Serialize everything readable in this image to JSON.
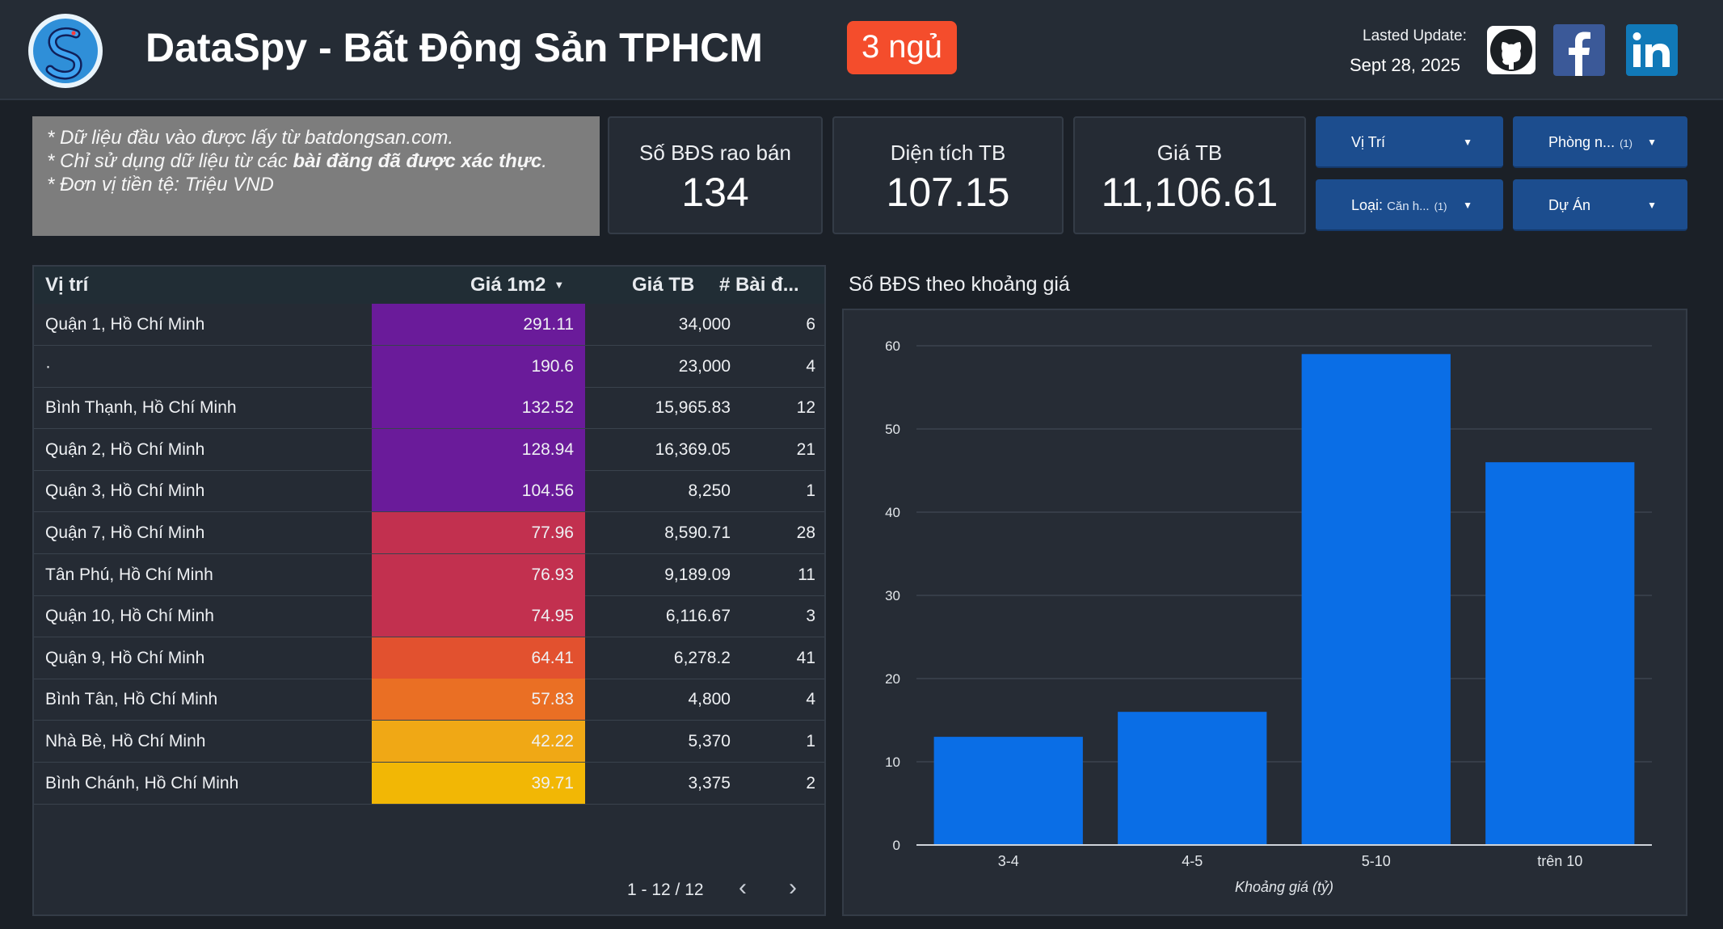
{
  "header": {
    "app_title": "DataSpy - Bất Động Sản TPHCM",
    "room_badge": "3 ngủ",
    "update_label": "Lasted Update:",
    "update_date": "Sept 28, 2025",
    "social": [
      "github-icon",
      "facebook-icon",
      "linkedin-icon"
    ]
  },
  "notes": {
    "line1": "* Dữ liệu đầu vào được lấy từ batdongsan.com.",
    "line2_pre": "* Chỉ sử dụng dữ liệu từ các ",
    "line2_bold": "bài đăng đã được xác thực",
    "line2_post": ".",
    "line3": "* Đơn vị tiền tệ: Triệu VND"
  },
  "kpis": {
    "count_label": "Số BĐS rao bán",
    "count_value": "134",
    "area_label": "Diện tích TB",
    "area_value": "107.15",
    "price_label": "Giá TB",
    "price_value": "11,106.61"
  },
  "filters": {
    "location": "Vị Trí",
    "rooms": "Phòng n...",
    "rooms_count": "(1)",
    "type_label": "Loại:",
    "type_value": "Căn h...",
    "type_count": "(1)",
    "project": "Dự Án"
  },
  "table": {
    "headers": {
      "location": "Vị trí",
      "price_m2": "Giá 1m2",
      "avg_price": "Giá TB",
      "posts": "# Bài đ..."
    },
    "rows": [
      {
        "location": "Quận 1, Hồ Chí Minh",
        "price_m2": "291.11",
        "avg_price": "34,000",
        "posts": "6",
        "color": "#6a1b9a"
      },
      {
        "location": "·",
        "price_m2": "190.6",
        "avg_price": "23,000",
        "posts": "4",
        "color": "#6a1b9a"
      },
      {
        "location": "Bình Thạnh, Hồ Chí Minh",
        "price_m2": "132.52",
        "avg_price": "15,965.83",
        "posts": "12",
        "color": "#6a1b9a"
      },
      {
        "location": "Quận 2, Hồ Chí Minh",
        "price_m2": "128.94",
        "avg_price": "16,369.05",
        "posts": "21",
        "color": "#6a1b9a"
      },
      {
        "location": "Quận 3, Hồ Chí Minh",
        "price_m2": "104.56",
        "avg_price": "8,250",
        "posts": "1",
        "color": "#6a1b9a"
      },
      {
        "location": "Quận 7, Hồ Chí Minh",
        "price_m2": "77.96",
        "avg_price": "8,590.71",
        "posts": "28",
        "color": "#c2304f"
      },
      {
        "location": "Tân Phú, Hồ Chí Minh",
        "price_m2": "76.93",
        "avg_price": "9,189.09",
        "posts": "11",
        "color": "#c2304f"
      },
      {
        "location": "Quận 10, Hồ Chí Minh",
        "price_m2": "74.95",
        "avg_price": "6,116.67",
        "posts": "3",
        "color": "#c2304f"
      },
      {
        "location": "Quận 9, Hồ Chí Minh",
        "price_m2": "64.41",
        "avg_price": "6,278.2",
        "posts": "41",
        "color": "#e2512f"
      },
      {
        "location": "Bình Tân, Hồ Chí Minh",
        "price_m2": "57.83",
        "avg_price": "4,800",
        "posts": "4",
        "color": "#ea6f24"
      },
      {
        "location": "Nhà Bè, Hồ Chí Minh",
        "price_m2": "42.22",
        "avg_price": "5,370",
        "posts": "1",
        "color": "#f0a815"
      },
      {
        "location": "Bình Chánh, Hồ Chí Minh",
        "price_m2": "39.71",
        "avg_price": "3,375",
        "posts": "2",
        "color": "#f2b705"
      }
    ],
    "pagination": "1 - 12 / 12"
  },
  "chart_data": {
    "type": "bar",
    "title": "Số BĐS theo khoảng giá",
    "categories": [
      "3-4",
      "4-5",
      "5-10",
      "trên 10"
    ],
    "values": [
      13,
      16,
      59,
      46
    ],
    "xlabel": "Khoảng giá (tỷ)",
    "ylabel": "",
    "ylim": [
      0,
      60
    ],
    "yticks": [
      0,
      10,
      20,
      30,
      40,
      50,
      60
    ],
    "grid": true,
    "bar_color": "#0a6ee6"
  }
}
